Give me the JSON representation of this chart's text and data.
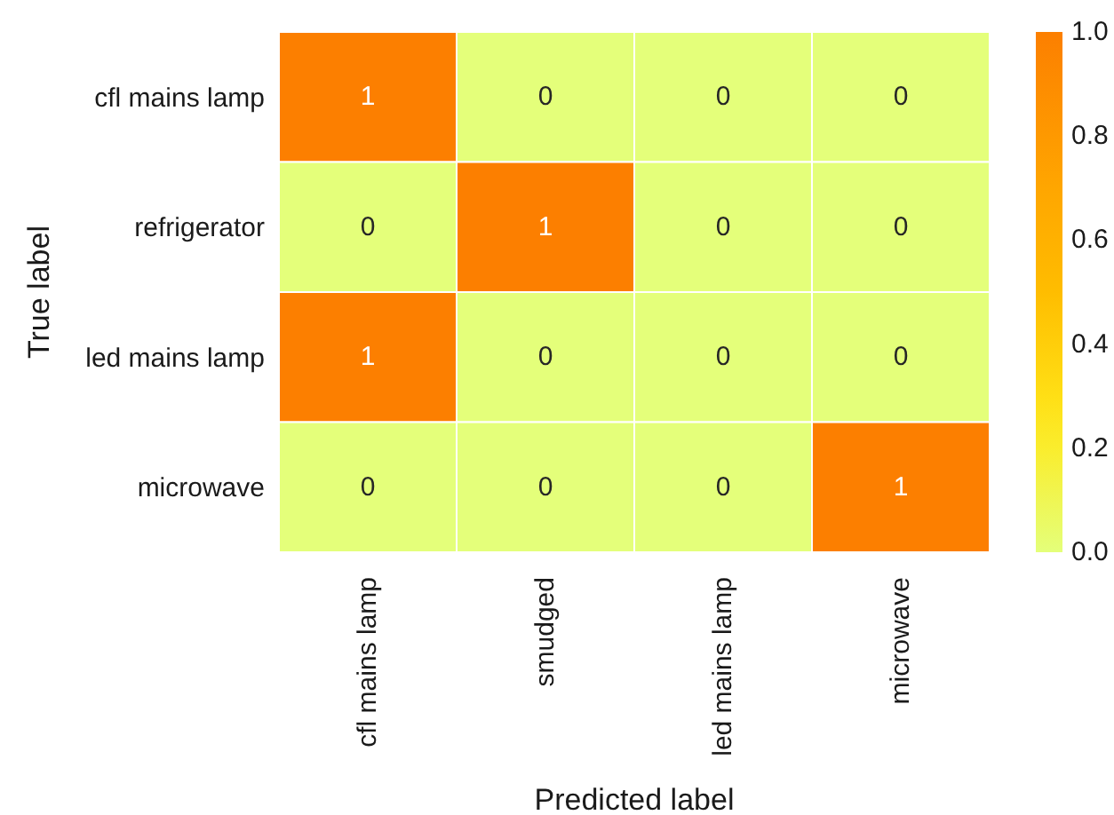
{
  "chart_data": {
    "type": "heatmap",
    "xlabel": "Predicted label",
    "ylabel": "True label",
    "categories": [
      "cfl mains lamp",
      "smudged",
      "led mains lamp",
      "microwave"
    ],
    "y_categories": [
      "cfl mains lamp",
      "refrigerator",
      "led mains lamp",
      "microwave"
    ],
    "cells": [
      [
        1,
        0,
        0,
        0
      ],
      [
        0,
        1,
        0,
        0
      ],
      [
        1,
        0,
        0,
        0
      ],
      [
        0,
        0,
        0,
        1
      ]
    ],
    "data_labels": true,
    "clim": [
      0,
      1
    ],
    "cticks": [
      {
        "value": 0,
        "label": "0.0"
      },
      0.2,
      0.4,
      0.6,
      0.8,
      {
        "value": 1,
        "label": "1.0"
      }
    ]
  }
}
